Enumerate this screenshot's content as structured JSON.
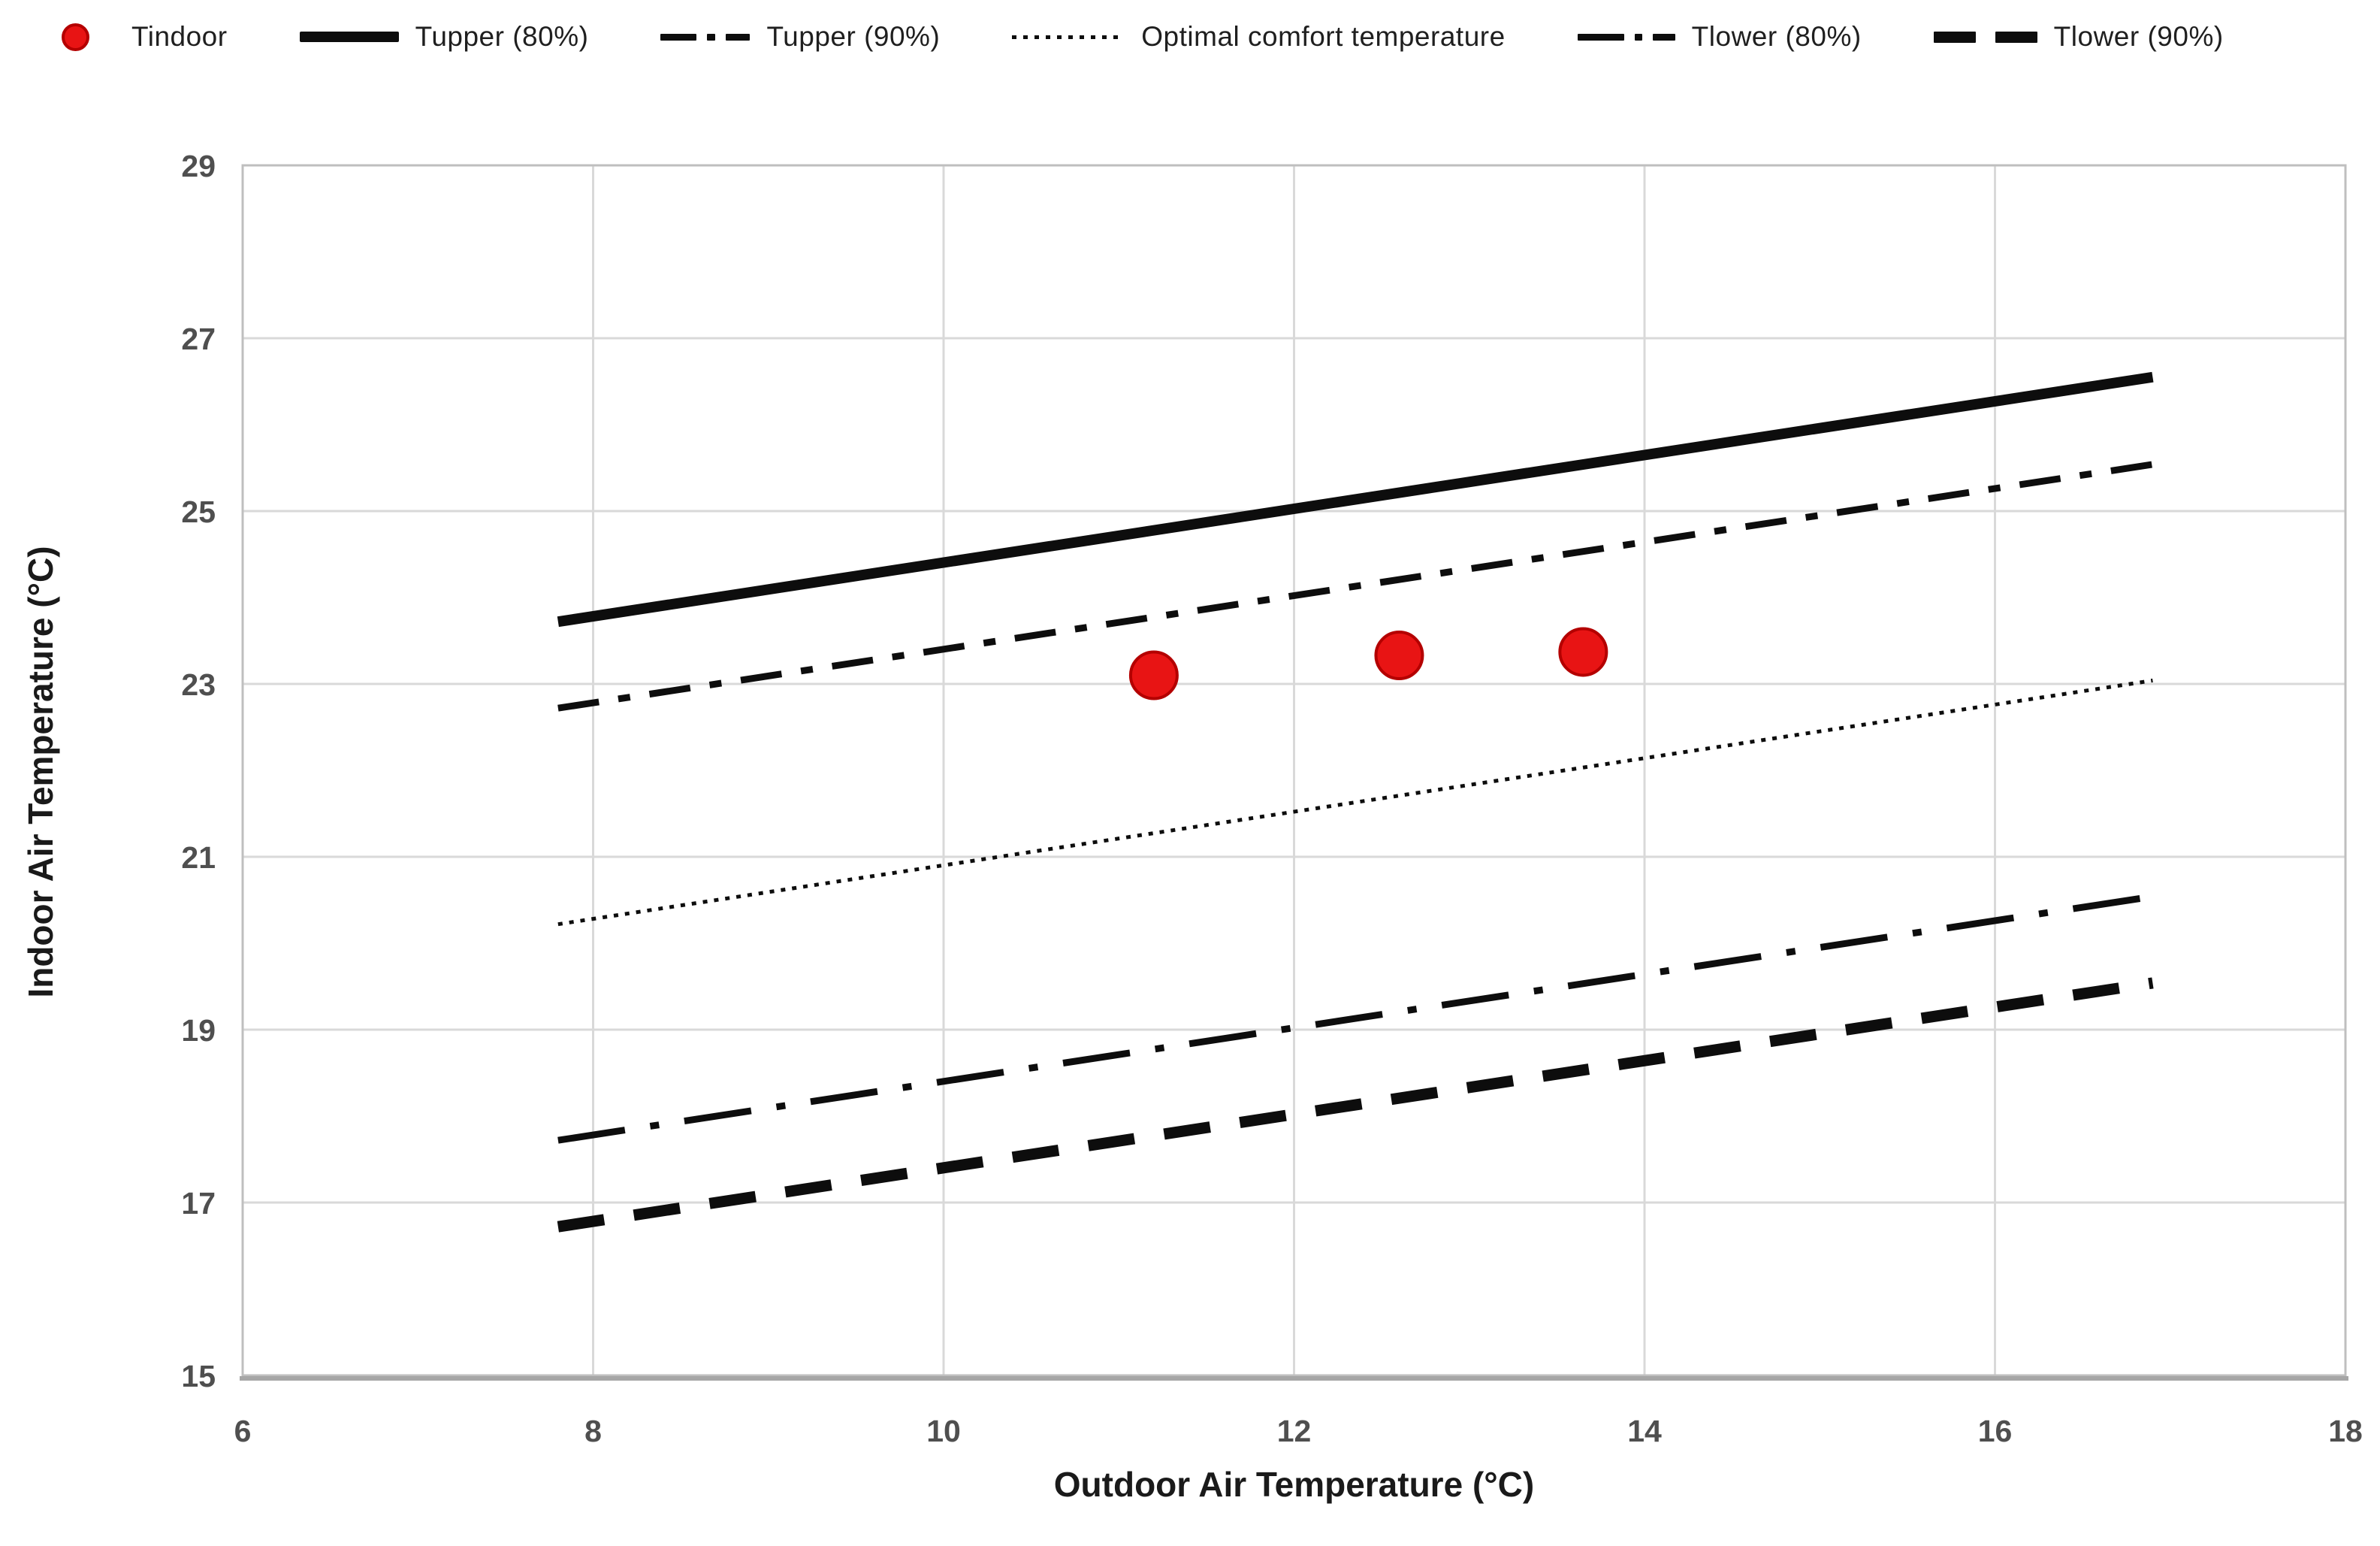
{
  "legend": {
    "items": [
      {
        "label": "Tindoor",
        "marker": "red-point"
      },
      {
        "label": "Tupper (80%)",
        "marker": "solid-line"
      },
      {
        "label": "Tupper (90%)",
        "marker": "dash-dot-line"
      },
      {
        "label": "Optimal comfort temperature",
        "marker": "dotted-line"
      },
      {
        "label": "Tlower (80%)",
        "marker": "long-dash-dot-line"
      },
      {
        "label": "Tlower (90%)",
        "marker": "thick-dash-line"
      }
    ]
  },
  "axes": {
    "x": {
      "title": "Outdoor Air Temperature (°C)",
      "ticks": [
        6,
        8,
        10,
        12,
        14,
        16,
        18
      ]
    },
    "y": {
      "title": "Indoor Air Temperature (°C)",
      "ticks": [
        15,
        17,
        19,
        21,
        23,
        25,
        27,
        29
      ]
    }
  },
  "chart_data": {
    "type": "scatter",
    "title": "",
    "xlabel": "Outdoor Air Temperature (°C)",
    "ylabel": "Indoor Air Temperature (°C)",
    "xlim": [
      6,
      18
    ],
    "ylim": [
      15,
      29
    ],
    "grid": true,
    "legend_position": "top",
    "scatter_series": {
      "name": "Tindoor",
      "points": [
        [
          11.2,
          23.1
        ],
        [
          12.6,
          23.33
        ],
        [
          13.65,
          23.37
        ]
      ]
    },
    "line_series": [
      {
        "name": "Tupper (80%)",
        "style": "solid",
        "points": [
          [
            7.8,
            23.72
          ],
          [
            16.9,
            26.55
          ]
        ]
      },
      {
        "name": "Tupper (90%)",
        "style": "dash-dot",
        "points": [
          [
            7.8,
            22.72
          ],
          [
            16.9,
            25.54
          ]
        ]
      },
      {
        "name": "Optimal comfort temperature",
        "style": "dotted",
        "points": [
          [
            7.8,
            20.22
          ],
          [
            16.9,
            23.04
          ]
        ]
      },
      {
        "name": "Tlower (80%)",
        "style": "long-dash-dot",
        "points": [
          [
            7.8,
            17.72
          ],
          [
            16.9,
            20.54
          ]
        ]
      },
      {
        "name": "Tlower (90%)",
        "style": "thick-dash",
        "points": [
          [
            7.8,
            16.72
          ],
          [
            16.9,
            19.54
          ]
        ]
      }
    ]
  },
  "colors": {
    "line": "#0d0d0d",
    "grid": "#d9d9d9",
    "border": "#bfbfbf",
    "axis_line": "#a6a6a6",
    "tick_text": "#4f4f4f",
    "point_fill": "#e81414",
    "point_stroke": "#b40000"
  }
}
